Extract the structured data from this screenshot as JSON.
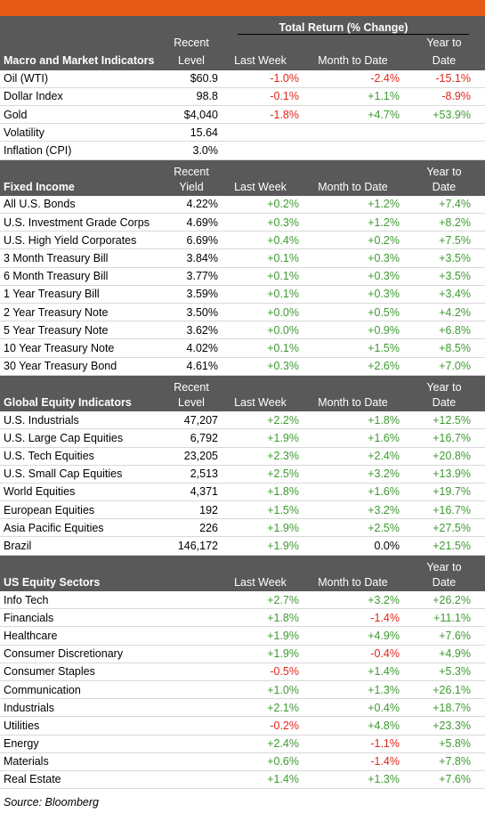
{
  "colors": {
    "accent": "#e65a17",
    "header_bg": "#595959",
    "positive": "#3f9a32",
    "negative": "#e1261c"
  },
  "total_return_label": "Total Return (% Change)",
  "sections": [
    {
      "title": "Macro and Market Indicators",
      "level_label": [
        "Recent",
        "Level"
      ],
      "col_last_week": "Last Week",
      "col_mtd": "Month to Date",
      "col_ytd": [
        "Year to",
        "Date"
      ],
      "rows": [
        {
          "name": "Oil (WTI)",
          "level": "$60.9",
          "lw": "-1.0%",
          "mtd": "-2.4%",
          "ytd": "-15.1%"
        },
        {
          "name": "Dollar Index",
          "level": "98.8",
          "lw": "-0.1%",
          "mtd": "+1.1%",
          "ytd": "-8.9%"
        },
        {
          "name": "Gold",
          "level": "$4,040",
          "lw": "-1.8%",
          "mtd": "+4.7%",
          "ytd": "+53.9%"
        },
        {
          "name": "Volatility",
          "level": "15.64",
          "lw": "",
          "mtd": "",
          "ytd": ""
        },
        {
          "name": "Inflation (CPI)",
          "level": "3.0%",
          "lw": "",
          "mtd": "",
          "ytd": ""
        }
      ]
    },
    {
      "title": "Fixed Income",
      "level_label": [
        "Recent",
        "Yield"
      ],
      "col_last_week": "Last Week",
      "col_mtd": "Month to Date",
      "col_ytd": [
        "Year to",
        "Date"
      ],
      "rows": [
        {
          "name": "All U.S. Bonds",
          "level": "4.22%",
          "lw": "+0.2%",
          "mtd": "+1.2%",
          "ytd": "+7.4%"
        },
        {
          "name": "U.S. Investment Grade Corps",
          "level": "4.69%",
          "lw": "+0.3%",
          "mtd": "+1.2%",
          "ytd": "+8.2%"
        },
        {
          "name": "U.S. High Yield Corporates",
          "level": "6.69%",
          "lw": "+0.4%",
          "mtd": "+0.2%",
          "ytd": "+7.5%"
        },
        {
          "name": "3 Month Treasury Bill",
          "level": "3.84%",
          "lw": "+0.1%",
          "mtd": "+0.3%",
          "ytd": "+3.5%"
        },
        {
          "name": "6 Month Treasury Bill",
          "level": "3.77%",
          "lw": "+0.1%",
          "mtd": "+0.3%",
          "ytd": "+3.5%"
        },
        {
          "name": "1 Year Treasury Bill",
          "level": "3.59%",
          "lw": "+0.1%",
          "mtd": "+0.3%",
          "ytd": "+3.4%"
        },
        {
          "name": "2 Year Treasury Note",
          "level": "3.50%",
          "lw": "+0.0%",
          "mtd": "+0.5%",
          "ytd": "+4.2%"
        },
        {
          "name": "5 Year Treasury Note",
          "level": "3.62%",
          "lw": "+0.0%",
          "mtd": "+0.9%",
          "ytd": "+6.8%"
        },
        {
          "name": "10 Year Treasury Note",
          "level": "4.02%",
          "lw": "+0.1%",
          "mtd": "+1.5%",
          "ytd": "+8.5%"
        },
        {
          "name": "30 Year Treasury Bond",
          "level": "4.61%",
          "lw": "+0.3%",
          "mtd": "+2.6%",
          "ytd": "+7.0%"
        }
      ]
    },
    {
      "title": "Global Equity Indicators",
      "level_label": [
        "Recent",
        "Level"
      ],
      "col_last_week": "Last Week",
      "col_mtd": "Month to Date",
      "col_ytd": [
        "Year to",
        "Date"
      ],
      "rows": [
        {
          "name": "U.S. Industrials",
          "level": "47,207",
          "lw": "+2.2%",
          "mtd": "+1.8%",
          "ytd": "+12.5%"
        },
        {
          "name": "U.S. Large Cap Equities",
          "level": "6,792",
          "lw": "+1.9%",
          "mtd": "+1.6%",
          "ytd": "+16.7%"
        },
        {
          "name": "U.S. Tech Equities",
          "level": "23,205",
          "lw": "+2.3%",
          "mtd": "+2.4%",
          "ytd": "+20.8%"
        },
        {
          "name": "U.S. Small Cap Equities",
          "level": "2,513",
          "lw": "+2.5%",
          "mtd": "+3.2%",
          "ytd": "+13.9%"
        },
        {
          "name": "World Equities",
          "level": "4,371",
          "lw": "+1.8%",
          "mtd": "+1.6%",
          "ytd": "+19.7%"
        },
        {
          "name": "European Equities",
          "level": "192",
          "lw": "+1.5%",
          "mtd": "+3.2%",
          "ytd": "+16.7%"
        },
        {
          "name": "Asia Pacific Equities",
          "level": "226",
          "lw": "+1.9%",
          "mtd": "+2.5%",
          "ytd": "+27.5%"
        },
        {
          "name": "Brazil",
          "level": "146,172",
          "lw": "+1.9%",
          "mtd": "0.0%",
          "ytd": "+21.5%"
        }
      ]
    },
    {
      "title": "US Equity Sectors",
      "level_label": [
        "",
        ""
      ],
      "col_last_week": "Last Week",
      "col_mtd": "Month to Date",
      "col_ytd": [
        "Year to",
        "Date"
      ],
      "rows": [
        {
          "name": "Info Tech",
          "level": "",
          "lw": "+2.7%",
          "mtd": "+3.2%",
          "ytd": "+26.2%"
        },
        {
          "name": "Financials",
          "level": "",
          "lw": "+1.8%",
          "mtd": "-1.4%",
          "ytd": "+11.1%"
        },
        {
          "name": "Healthcare",
          "level": "",
          "lw": "+1.9%",
          "mtd": "+4.9%",
          "ytd": "+7.6%"
        },
        {
          "name": "Consumer Discretionary",
          "level": "",
          "lw": "+1.9%",
          "mtd": "-0.4%",
          "ytd": "+4.9%"
        },
        {
          "name": "Consumer Staples",
          "level": "",
          "lw": "-0.5%",
          "mtd": "+1.4%",
          "ytd": "+5.3%"
        },
        {
          "name": "Communication",
          "level": "",
          "lw": "+1.0%",
          "mtd": "+1.3%",
          "ytd": "+26.1%"
        },
        {
          "name": "Industrials",
          "level": "",
          "lw": "+2.1%",
          "mtd": "+0.4%",
          "ytd": "+18.7%"
        },
        {
          "name": "Utilities",
          "level": "",
          "lw": "-0.2%",
          "mtd": "+4.8%",
          "ytd": "+23.3%"
        },
        {
          "name": "Energy",
          "level": "",
          "lw": "+2.4%",
          "mtd": "-1.1%",
          "ytd": "+5.8%"
        },
        {
          "name": "Materials",
          "level": "",
          "lw": "+0.6%",
          "mtd": "-1.4%",
          "ytd": "+7.8%"
        },
        {
          "name": "Real Estate",
          "level": "",
          "lw": "+1.4%",
          "mtd": "+1.3%",
          "ytd": "+7.6%"
        }
      ]
    }
  ],
  "source": "Source: Bloomberg"
}
